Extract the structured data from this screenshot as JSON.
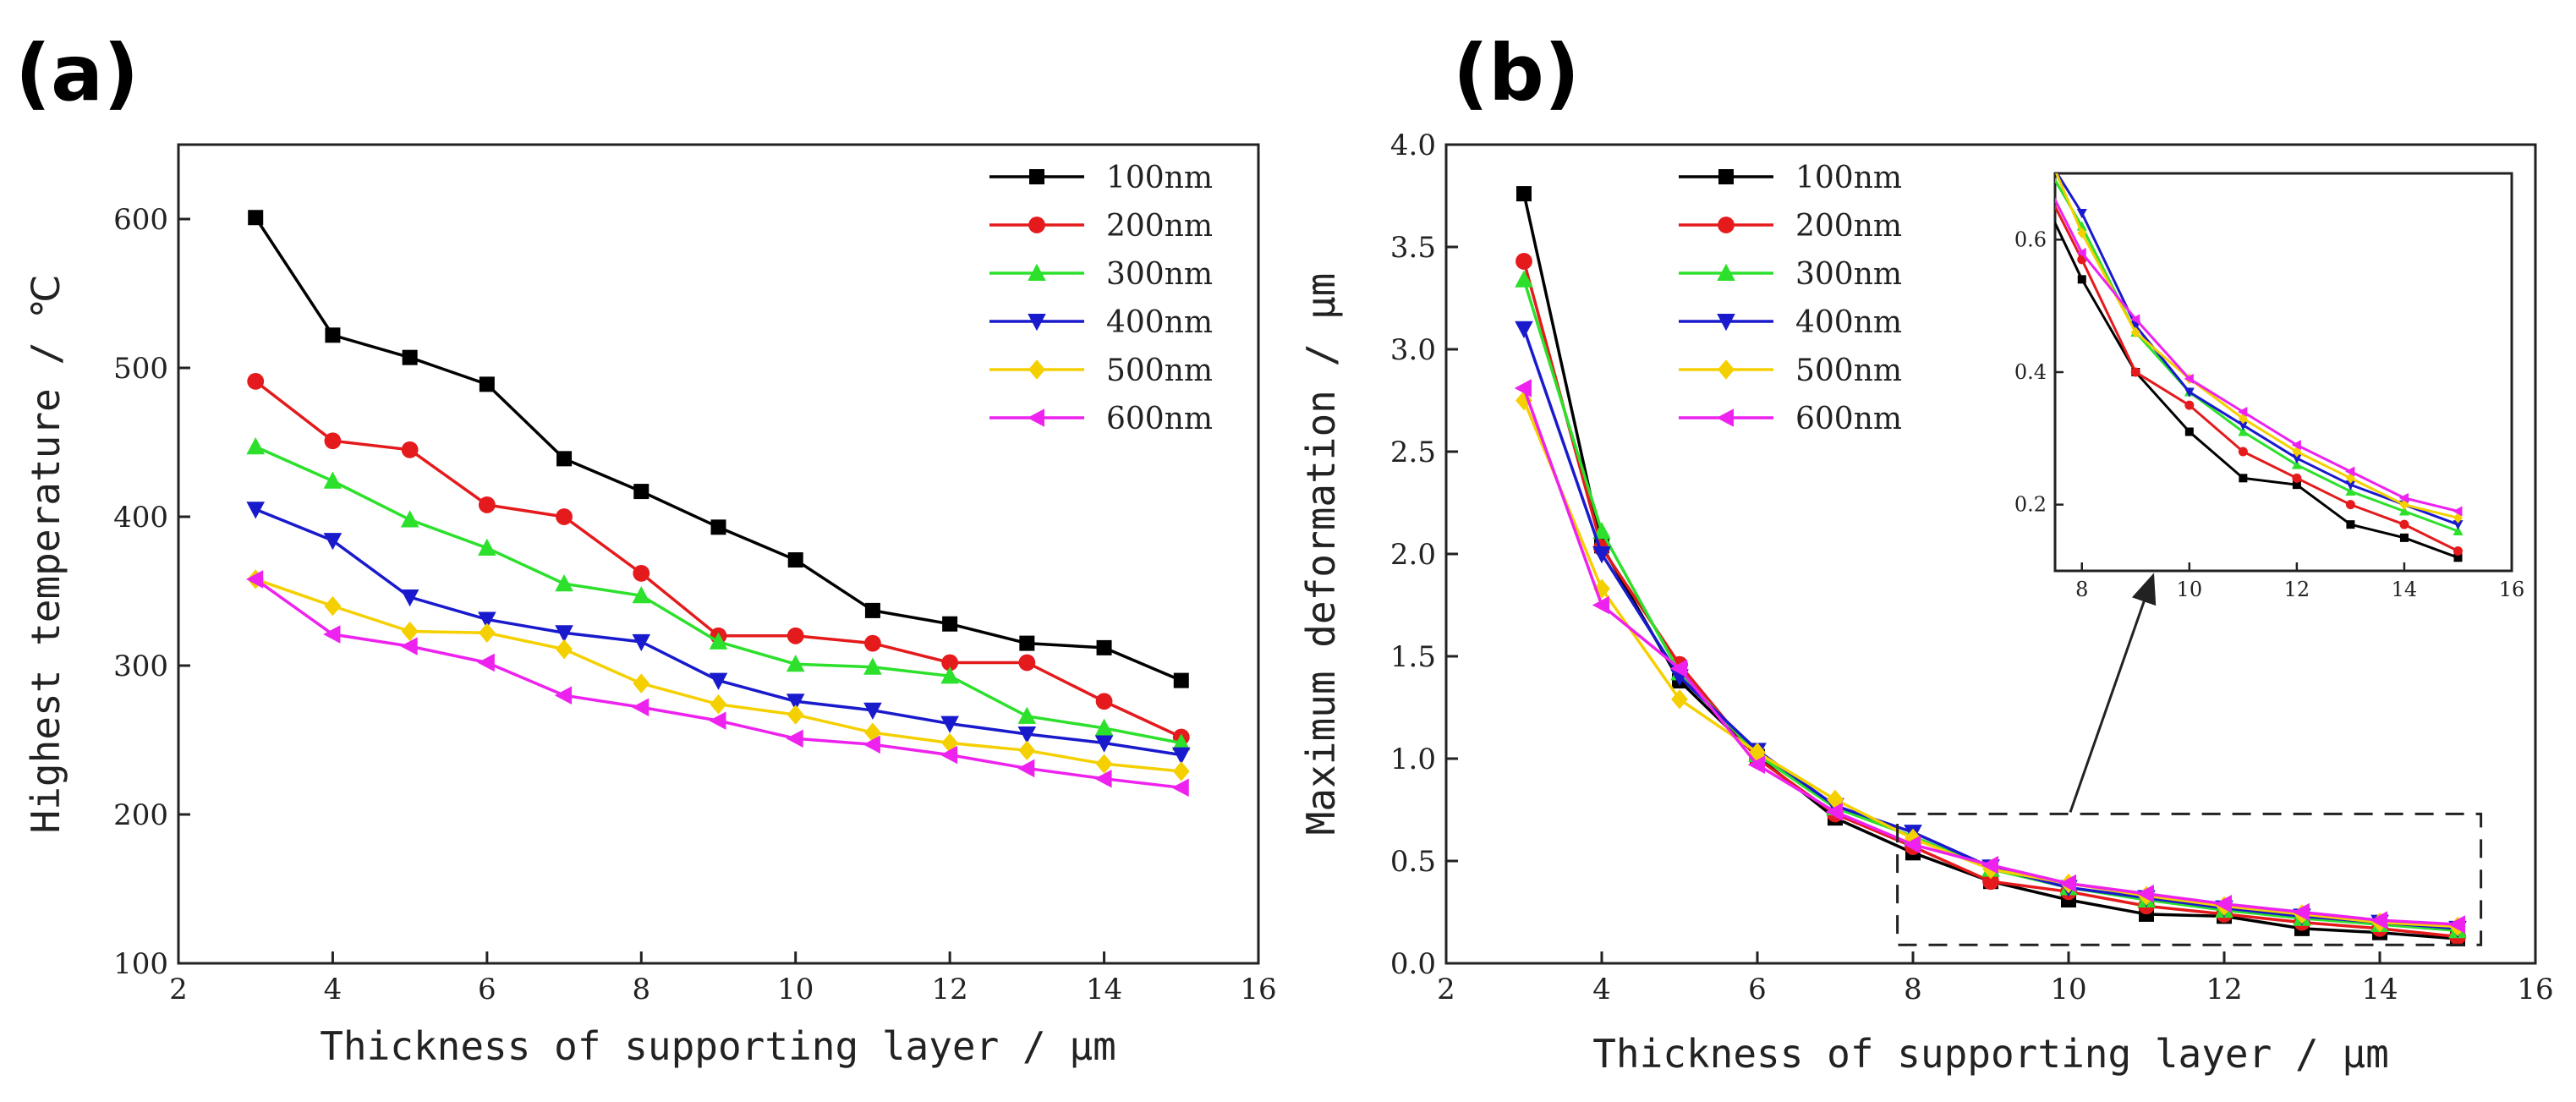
{
  "chart_data": [
    {
      "panel": "(a)",
      "type": "line",
      "xlabel": "Thickness of supporting layer / μm",
      "ylabel": "Highest temperature / ℃",
      "xlim": [
        2,
        16
      ],
      "ylim": [
        100,
        650
      ],
      "xticks": [
        2,
        4,
        6,
        8,
        10,
        12,
        14,
        16
      ],
      "yticks": [
        100,
        200,
        300,
        400,
        500,
        600
      ],
      "grid": false,
      "legend_position": "top-right",
      "x": [
        3,
        4,
        5,
        6,
        7,
        8,
        9,
        10,
        11,
        12,
        13,
        14,
        15
      ],
      "series": [
        {
          "name": "100nm",
          "color": "#000000",
          "marker": "square",
          "values": [
            601,
            522,
            507,
            489,
            439,
            417,
            393,
            371,
            337,
            328,
            315,
            312,
            290
          ]
        },
        {
          "name": "200nm",
          "color": "#e41a1c",
          "marker": "circle",
          "values": [
            491,
            451,
            445,
            408,
            400,
            362,
            320,
            320,
            315,
            302,
            302,
            276,
            252
          ]
        },
        {
          "name": "300nm",
          "color": "#2ce02c",
          "marker": "triangle-up",
          "values": [
            447,
            424,
            398,
            379,
            355,
            347,
            316,
            301,
            299,
            293,
            266,
            258,
            248
          ]
        },
        {
          "name": "400nm",
          "color": "#1a1acd",
          "marker": "triangle-down",
          "values": [
            405,
            384,
            346,
            331,
            322,
            316,
            290,
            276,
            270,
            261,
            254,
            248,
            240
          ]
        },
        {
          "name": "500nm",
          "color": "#f5d000",
          "marker": "diamond",
          "values": [
            358,
            340,
            323,
            322,
            311,
            288,
            274,
            267,
            255,
            248,
            243,
            234,
            229
          ]
        },
        {
          "name": "600nm",
          "color": "#ee22ee",
          "marker": "triangle-left",
          "values": [
            358,
            321,
            313,
            302,
            280,
            272,
            263,
            251,
            247,
            240,
            231,
            224,
            218
          ]
        }
      ]
    },
    {
      "panel": "(b)",
      "type": "line",
      "xlabel": "Thickness of supporting layer / μm",
      "ylabel": "Maximum deformation / μm",
      "xlim": [
        2,
        16
      ],
      "ylim": [
        0.0,
        4.0
      ],
      "xticks": [
        2,
        4,
        6,
        8,
        10,
        12,
        14,
        16
      ],
      "yticks": [
        "0.0",
        "0.5",
        "1.0",
        "1.5",
        "2.0",
        "2.5",
        "3.0",
        "3.5",
        "4.0"
      ],
      "grid": false,
      "legend_position": "top-left",
      "x": [
        3,
        4,
        5,
        6,
        7,
        8,
        9,
        10,
        11,
        12,
        13,
        14,
        15
      ],
      "series": [
        {
          "name": "100nm",
          "color": "#000000",
          "marker": "square",
          "values": [
            3.76,
            2.04,
            1.38,
            1.01,
            0.71,
            0.54,
            0.4,
            0.31,
            0.24,
            0.23,
            0.17,
            0.15,
            0.12
          ]
        },
        {
          "name": "200nm",
          "color": "#e41a1c",
          "marker": "circle",
          "values": [
            3.43,
            2.03,
            1.46,
            1.0,
            0.73,
            0.57,
            0.4,
            0.35,
            0.28,
            0.24,
            0.2,
            0.17,
            0.13
          ]
        },
        {
          "name": "300nm",
          "color": "#2ce02c",
          "marker": "triangle-up",
          "values": [
            3.34,
            2.11,
            1.42,
            1.02,
            0.76,
            0.62,
            0.46,
            0.37,
            0.31,
            0.26,
            0.22,
            0.19,
            0.16
          ]
        },
        {
          "name": "400nm",
          "color": "#1a1acd",
          "marker": "triangle-down",
          "values": [
            3.1,
            2.0,
            1.4,
            1.04,
            0.77,
            0.64,
            0.47,
            0.37,
            0.32,
            0.27,
            0.23,
            0.2,
            0.17
          ]
        },
        {
          "name": "500nm",
          "color": "#f5d000",
          "marker": "diamond",
          "values": [
            2.75,
            1.83,
            1.29,
            1.03,
            0.8,
            0.61,
            0.46,
            0.39,
            0.33,
            0.28,
            0.24,
            0.2,
            0.18
          ]
        },
        {
          "name": "600nm",
          "color": "#ee22ee",
          "marker": "triangle-left",
          "values": [
            2.81,
            1.75,
            1.44,
            0.97,
            0.74,
            0.58,
            0.48,
            0.39,
            0.34,
            0.29,
            0.25,
            0.21,
            0.19
          ]
        }
      ],
      "inset": {
        "xlim": [
          7.5,
          16
        ],
        "ylim": [
          0.1,
          0.7
        ],
        "xticks": [
          8,
          10,
          12,
          14,
          16
        ],
        "yticks": [
          "0.2",
          "0.4",
          "0.6"
        ],
        "source_region": {
          "x": [
            7.8,
            15.3
          ],
          "y": [
            0.09,
            0.73
          ]
        }
      }
    }
  ]
}
